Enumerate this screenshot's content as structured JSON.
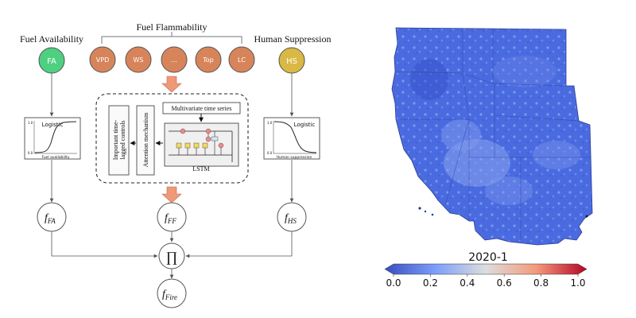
{
  "diagram": {
    "heading_fuel_availability": "Fuel Availability",
    "heading_fuel_flammability": "Fuel Flammability",
    "heading_human_suppression": "Human Suppression",
    "node_fa": "FA",
    "node_hs": "HS",
    "drivers": [
      "VPD",
      "WS",
      "...",
      "Top",
      "LC"
    ],
    "multivariate_label": "Multivariate time series",
    "lstm_label": "LSTM",
    "attention_label": "Attention mechanism",
    "controls_label_line1": "Important time-",
    "controls_label_line2": "lagged controls",
    "logistic_label": "Logistic",
    "axis_one": "1.0",
    "axis_zero": "0.0",
    "fa_axis_label": "Fuel availability",
    "hs_axis_label": "Human suppression",
    "f_symbol": "f",
    "sub_fa": "FA",
    "sub_ff": "FF",
    "sub_hs": "HS",
    "sub_fire": "Fire",
    "product_symbol": "∏"
  },
  "map": {
    "title": "2020-1",
    "colorbar_ticks": [
      "0.0",
      "0.2",
      "0.4",
      "0.6",
      "0.8",
      "1.0"
    ],
    "colors": {
      "low": "#3b4cc0",
      "mid": "#dddddd",
      "high": "#b40426",
      "map_fill": "#4466dd"
    }
  },
  "colors": {
    "fa_fill": "#4dd080",
    "hs_fill": "#d9b844",
    "driver_fill": "#d8845a",
    "arrow_fill": "#ee9977",
    "line": "#555555"
  }
}
